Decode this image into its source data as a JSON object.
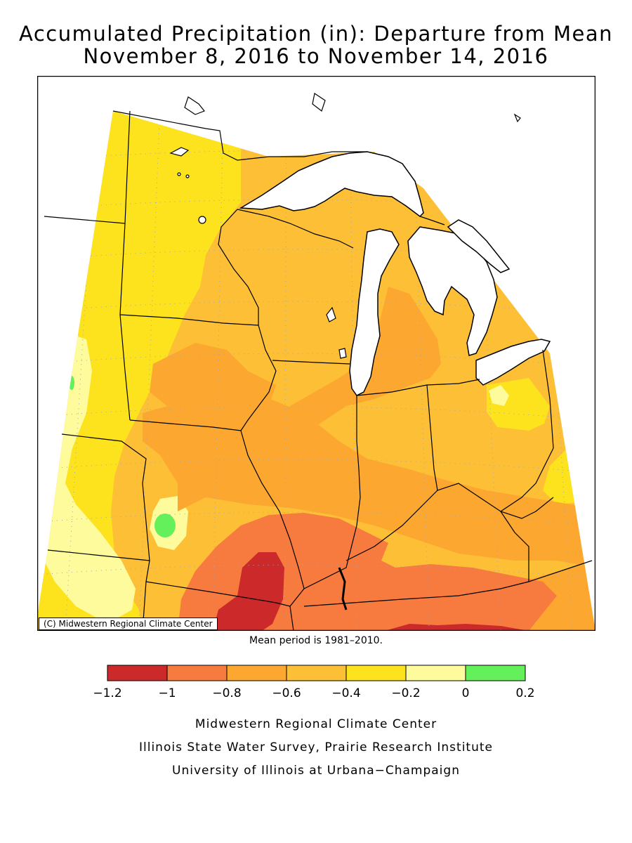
{
  "title_line1": "Accumulated Precipitation (in): Departure from Mean",
  "title_line2": "November 8, 2016 to November 14, 2016",
  "copyright": "(C) Midwestern Regional Climate Center",
  "mean_period": "Mean period is 1981–2010.",
  "legend": {
    "bins": [
      {
        "from": -1.2,
        "to": -1.0,
        "color": "#cc2a2a"
      },
      {
        "from": -1.0,
        "to": -0.8,
        "color": "#f77a3f"
      },
      {
        "from": -0.8,
        "to": -0.6,
        "color": "#fca830"
      },
      {
        "from": -0.6,
        "to": -0.4,
        "color": "#fdbf36"
      },
      {
        "from": -0.4,
        "to": -0.2,
        "color": "#fde21e"
      },
      {
        "from": -0.2,
        "to": 0.0,
        "color": "#fefb9c"
      },
      {
        "from": 0.0,
        "to": 0.2,
        "color": "#63f05a"
      }
    ],
    "tick_labels": [
      "−1.2",
      "−1",
      "−0.8",
      "−0.6",
      "−0.4",
      "−0.2",
      "0",
      "0.2"
    ]
  },
  "credits": [
    "Midwestern Regional Climate Center",
    "Illinois State Water Survey, Prairie Research Institute",
    "University of Illinois at Urbana−Champaign"
  ],
  "colors": {
    "water": "#ffffff",
    "border": "#000000",
    "grid": "#9aa6c8"
  }
}
